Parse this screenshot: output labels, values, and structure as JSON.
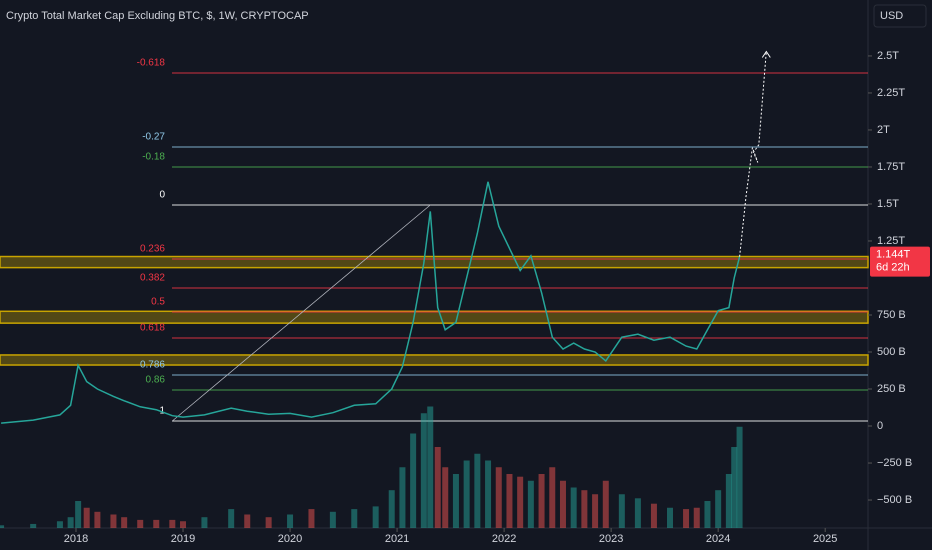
{
  "chart_data": {
    "type": "line",
    "title": "Crypto Total Market Cap Excluding BTC, $, 1W, CRYPTOCAP",
    "currency": "USD",
    "xlim": [
      2017.29,
      2025.4
    ],
    "xticks": [
      2018,
      2019,
      2020,
      2021,
      2022,
      2023,
      2024,
      2025
    ],
    "ylim": [
      -689,
      2878
    ],
    "yticks": [
      {
        "value": -500,
        "label": "−500 B"
      },
      {
        "value": -250,
        "label": "−250 B"
      },
      0,
      {
        "value": 250,
        "label": "250 B"
      },
      {
        "value": 500,
        "label": "500 B"
      },
      {
        "value": 750,
        "label": "750 B"
      },
      {
        "value": 1250,
        "label": "1.25T"
      },
      {
        "value": 1500,
        "label": "1.5T"
      },
      {
        "value": 1750,
        "label": "1.75T"
      },
      {
        "value": 2000,
        "label": "2T"
      },
      {
        "value": 2250,
        "label": "2.25T"
      },
      {
        "value": 2500,
        "label": "2.5T"
      }
    ],
    "price": {
      "color": "#26a69a",
      "x": [
        2017.3,
        2017.6,
        2017.85,
        2017.95,
        2018.02,
        2018.1,
        2018.2,
        2018.35,
        2018.45,
        2018.6,
        2018.75,
        2018.9,
        2019.0,
        2019.2,
        2019.45,
        2019.6,
        2019.8,
        2020.0,
        2020.2,
        2020.4,
        2020.6,
        2020.8,
        2020.95,
        2021.05,
        2021.15,
        2021.25,
        2021.31,
        2021.38,
        2021.45,
        2021.55,
        2021.65,
        2021.75,
        2021.85,
        2021.95,
        2022.05,
        2022.15,
        2022.25,
        2022.35,
        2022.45,
        2022.55,
        2022.65,
        2022.75,
        2022.85,
        2022.95,
        2023.1,
        2023.25,
        2023.4,
        2023.55,
        2023.7,
        2023.8,
        2023.9,
        2024.0,
        2024.1,
        2024.15,
        2024.2
      ],
      "values": [
        20,
        40,
        75,
        140,
        410,
        300,
        250,
        200,
        170,
        130,
        110,
        70,
        60,
        75,
        120,
        100,
        80,
        85,
        60,
        90,
        140,
        150,
        250,
        400,
        700,
        1100,
        1450,
        800,
        650,
        700,
        1000,
        1300,
        1650,
        1350,
        1200,
        1050,
        1150,
        900,
        600,
        520,
        560,
        520,
        500,
        440,
        600,
        620,
        580,
        600,
        540,
        520,
        650,
        780,
        800,
        1000,
        1144
      ]
    },
    "volume": {
      "ylim": [
        0,
        100
      ],
      "values": [
        2,
        3,
        5,
        8,
        20,
        15,
        12,
        10,
        8,
        6,
        6,
        6,
        5,
        8,
        14,
        10,
        8,
        10,
        14,
        12,
        14,
        16,
        28,
        45,
        70,
        85,
        90,
        60,
        45,
        40,
        50,
        55,
        50,
        45,
        40,
        38,
        35,
        40,
        45,
        35,
        30,
        28,
        25,
        35,
        25,
        22,
        18,
        15,
        14,
        15,
        20,
        28,
        40,
        60,
        75
      ]
    },
    "trend_line": {
      "x": [
        2018.9,
        2021.31
      ],
      "values": [
        34,
        1493
      ]
    },
    "projection": {
      "x": [
        2024.2,
        2024.26,
        2024.32,
        2024.37,
        2024.33,
        2024.38,
        2024.45
      ],
      "values": [
        1144,
        1550,
        1880,
        1780,
        1850,
        1900,
        2530
      ]
    },
    "fib_levels": [
      {
        "label": "-0.618",
        "value": 2385,
        "color": "#f23645"
      },
      {
        "label": "-0.27",
        "value": 1885,
        "color": "#90c8e8"
      },
      {
        "label": "-0.18",
        "value": 1750,
        "color": "#4caf50"
      },
      {
        "label": "0",
        "value": 1493,
        "color": "#ffffff"
      },
      {
        "label": "0.236",
        "value": 1128,
        "color": "#f23645"
      },
      {
        "label": "0.382",
        "value": 932,
        "color": "#f23645"
      },
      {
        "label": "0.5",
        "value": 770,
        "color": "#f23645"
      },
      {
        "label": "0.618",
        "value": 595,
        "color": "#f23645"
      },
      {
        "label": "0.786",
        "value": 345,
        "color": "#90c8e8"
      },
      {
        "label": "0.86",
        "value": 243,
        "color": "#4caf50"
      },
      {
        "label": "1",
        "value": 34,
        "color": "#ffffff"
      }
    ],
    "zones": {
      "color": "#c8a400",
      "ranges": [
        [
          1070,
          1145
        ],
        [
          695,
          775
        ],
        [
          412,
          480
        ]
      ]
    },
    "last_price": {
      "value": 1144,
      "label": "1.144T",
      "countdown": "6d 22h",
      "color": "#f23645"
    }
  }
}
